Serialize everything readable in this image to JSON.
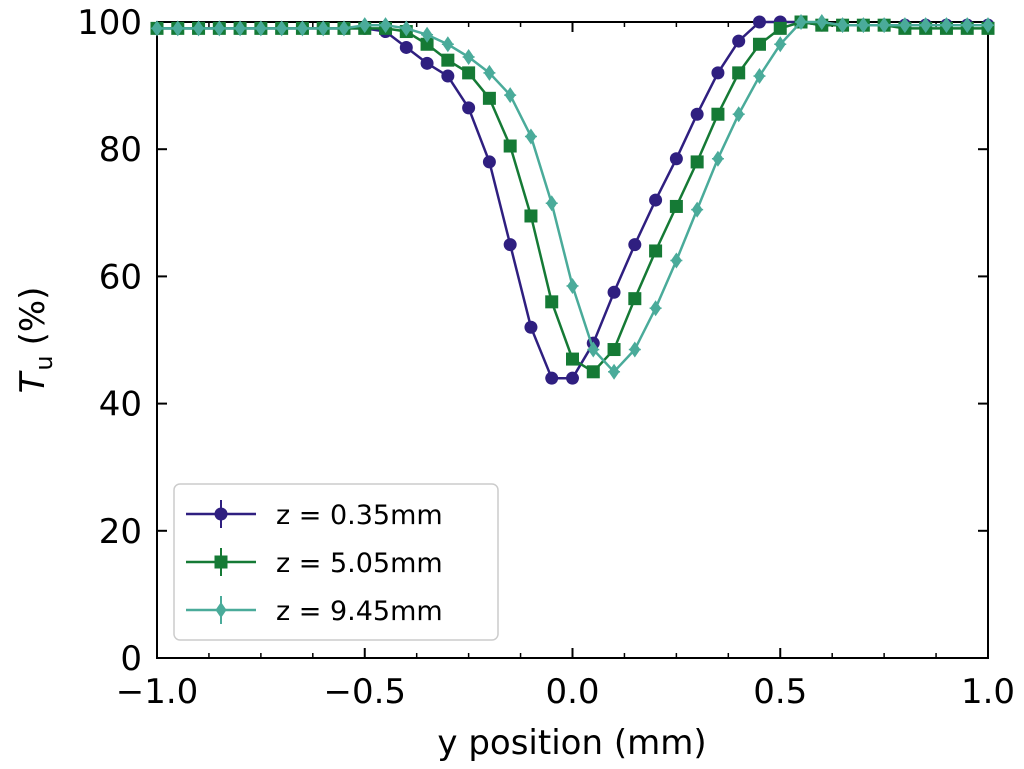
{
  "chart_data": {
    "type": "line",
    "title": "",
    "xlabel": "y position (mm)",
    "ylabel_symbol": "T",
    "ylabel_subscript": "u",
    "ylabel_unit": "(%)",
    "xlim": [
      -1.0,
      1.0
    ],
    "ylim": [
      0,
      100
    ],
    "xticks": [
      -1.0,
      -0.5,
      0.0,
      0.5,
      1.0
    ],
    "xtick_labels": [
      "−1.0",
      "−0.5",
      "0.0",
      "0.5",
      "1.0"
    ],
    "yticks": [
      0,
      20,
      40,
      60,
      80,
      100
    ],
    "ytick_labels": [
      "0",
      "20",
      "40",
      "60",
      "80",
      "100"
    ],
    "legend_position": "lower-left",
    "series": [
      {
        "name": "z = 0.35mm",
        "color": "#2f1f80",
        "marker": "circle",
        "x": [
          -1.0,
          -0.95,
          -0.9,
          -0.85,
          -0.8,
          -0.75,
          -0.7,
          -0.65,
          -0.6,
          -0.55,
          -0.5,
          -0.45,
          -0.4,
          -0.35,
          -0.3,
          -0.25,
          -0.2,
          -0.15,
          -0.1,
          -0.05,
          0.0,
          0.05,
          0.1,
          0.15,
          0.2,
          0.25,
          0.3,
          0.35,
          0.4,
          0.45,
          0.5,
          0.55,
          0.6,
          0.65,
          0.7,
          0.75,
          0.8,
          0.85,
          0.9,
          0.95,
          1.0
        ],
        "y": [
          99,
          99,
          99,
          99,
          99,
          99,
          99,
          99,
          99,
          99,
          99,
          98.5,
          96,
          93.5,
          91.5,
          86.5,
          78,
          65,
          52,
          44,
          44,
          49.5,
          57.5,
          65,
          72,
          78.5,
          85.5,
          92,
          97,
          100,
          100,
          100,
          99.5,
          99.5,
          99.5,
          99.5,
          99.5,
          99.5,
          99.5,
          99.5,
          99.5
        ]
      },
      {
        "name": "z = 5.05mm",
        "color": "#157a35",
        "marker": "square",
        "x": [
          -1.0,
          -0.95,
          -0.9,
          -0.85,
          -0.8,
          -0.75,
          -0.7,
          -0.65,
          -0.6,
          -0.55,
          -0.5,
          -0.45,
          -0.4,
          -0.35,
          -0.3,
          -0.25,
          -0.2,
          -0.15,
          -0.1,
          -0.05,
          0.0,
          0.05,
          0.1,
          0.15,
          0.2,
          0.25,
          0.3,
          0.35,
          0.4,
          0.45,
          0.5,
          0.55,
          0.6,
          0.65,
          0.7,
          0.75,
          0.8,
          0.85,
          0.9,
          0.95,
          1.0
        ],
        "y": [
          99,
          99,
          99,
          99,
          99,
          99,
          99,
          99,
          99,
          99,
          99,
          99,
          98.5,
          96.5,
          94,
          92,
          88,
          80.5,
          69.5,
          56,
          47,
          45,
          48.5,
          56.5,
          64,
          71,
          78,
          85.5,
          92,
          96.5,
          99,
          100,
          99.5,
          99.5,
          99.5,
          99.5,
          99,
          99,
          99,
          99,
          99
        ]
      },
      {
        "name": "z = 9.45mm",
        "color": "#4aab9a",
        "marker": "diamond",
        "x": [
          -1.0,
          -0.95,
          -0.9,
          -0.85,
          -0.8,
          -0.75,
          -0.7,
          -0.65,
          -0.6,
          -0.55,
          -0.5,
          -0.45,
          -0.4,
          -0.35,
          -0.3,
          -0.25,
          -0.2,
          -0.15,
          -0.1,
          -0.05,
          0.0,
          0.05,
          0.1,
          0.15,
          0.2,
          0.25,
          0.3,
          0.35,
          0.4,
          0.45,
          0.5,
          0.55,
          0.6,
          0.65,
          0.7,
          0.75,
          0.8,
          0.85,
          0.9,
          0.95,
          1.0
        ],
        "y": [
          99,
          99,
          99,
          99,
          99,
          99,
          99,
          99,
          99,
          99,
          99.5,
          99.5,
          99,
          98,
          96.5,
          94.5,
          92,
          88.5,
          82,
          71.5,
          58.5,
          48.5,
          45,
          48.5,
          55,
          62.5,
          70.5,
          78.5,
          85.5,
          91.5,
          96.5,
          100,
          100,
          99.5,
          99.5,
          99.5,
          99.5,
          99.5,
          99.5,
          99.5,
          99.5
        ]
      }
    ]
  }
}
